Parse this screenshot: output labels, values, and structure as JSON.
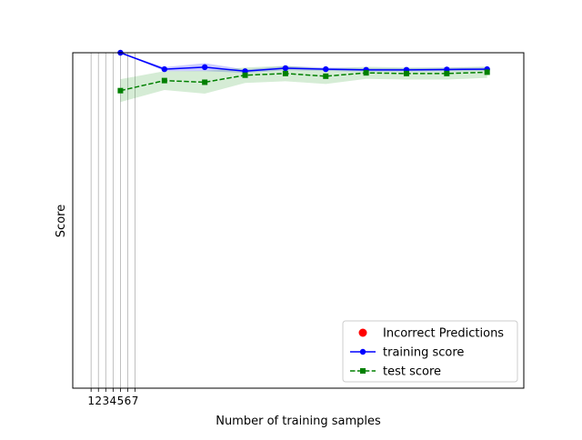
{
  "chart_data": {
    "type": "line",
    "title": "",
    "xlabel": "Number of training samples",
    "ylabel": "Score",
    "xticks": [
      1,
      2,
      3,
      4,
      5,
      6,
      7
    ],
    "xtick_labels": [
      "1",
      "2",
      "3",
      "4",
      "5",
      "6",
      "7"
    ],
    "vertical_gridlines_at": [
      1,
      2,
      3,
      4,
      5,
      6,
      7
    ],
    "xlim": [
      -1.5,
      60
    ],
    "ylim": [
      0.0,
      1.0
    ],
    "x": [
      5,
      11,
      16.5,
      22,
      27.5,
      33,
      38.5,
      44,
      49.5,
      55
    ],
    "series": [
      {
        "name": "training score",
        "color": "#0000ff",
        "marker": "circle",
        "linestyle": "solid",
        "values": [
          1.0,
          0.951,
          0.957,
          0.945,
          0.954,
          0.951,
          0.949,
          0.949,
          0.95,
          0.951
        ],
        "band_lower": [
          1.0,
          0.945,
          0.945,
          0.94,
          0.948,
          0.946,
          0.944,
          0.944,
          0.945,
          0.946
        ],
        "band_upper": [
          1.0,
          0.957,
          0.969,
          0.95,
          0.96,
          0.956,
          0.954,
          0.954,
          0.955,
          0.956
        ],
        "band_color": "#0000ff"
      },
      {
        "name": "test score",
        "color": "#008000",
        "marker": "square",
        "linestyle": "dashed",
        "values": [
          0.887,
          0.917,
          0.912,
          0.933,
          0.938,
          0.93,
          0.94,
          0.938,
          0.938,
          0.942
        ],
        "band_lower": [
          0.853,
          0.889,
          0.878,
          0.91,
          0.915,
          0.907,
          0.922,
          0.92,
          0.92,
          0.925
        ],
        "band_upper": [
          0.921,
          0.945,
          0.946,
          0.956,
          0.961,
          0.953,
          0.958,
          0.956,
          0.956,
          0.959
        ],
        "band_color": "#2ca02c"
      }
    ],
    "legend": {
      "placement": "lower-right",
      "entries": [
        {
          "label": "Incorrect Predictions",
          "color": "#ff0000",
          "marker": "circle",
          "line": false
        },
        {
          "label": "training score",
          "color": "#0000ff",
          "marker": "circle",
          "line": "solid"
        },
        {
          "label": "test score",
          "color": "#008000",
          "marker": "square",
          "line": "dashed"
        }
      ]
    },
    "grid": "vertical-at-xticks"
  }
}
